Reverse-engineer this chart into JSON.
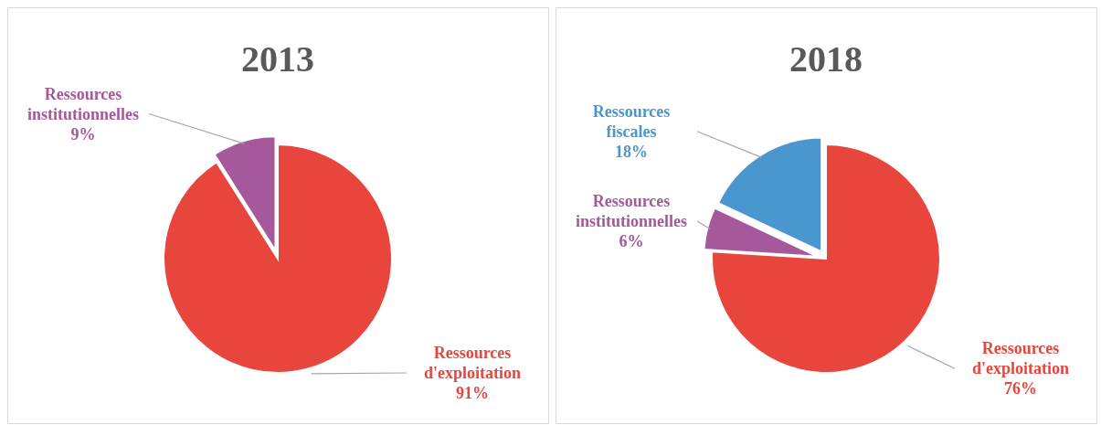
{
  "chart_data": [
    {
      "type": "pie",
      "title": "2013",
      "categories": [
        "Ressources d'exploitation",
        "Ressources institutionnelles"
      ],
      "values": [
        91,
        9
      ],
      "colors": [
        "#e8453c",
        "#a5589a"
      ],
      "value_labels": [
        "91%",
        "9%"
      ]
    },
    {
      "type": "pie",
      "title": "2018",
      "categories": [
        "Ressources d'exploitation",
        "Ressources institutionnelles",
        "Ressources fiscales"
      ],
      "values": [
        76,
        6,
        18
      ],
      "colors": [
        "#e8453c",
        "#a5589a",
        "#4a96cf"
      ],
      "value_labels": [
        "76%",
        "6%",
        "18%"
      ]
    }
  ]
}
